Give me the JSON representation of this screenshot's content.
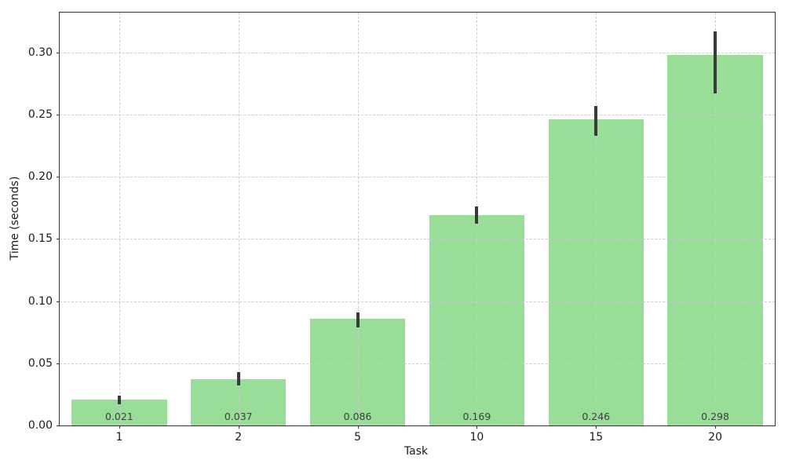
{
  "chart_data": {
    "type": "bar",
    "title": "",
    "xlabel": "Task",
    "ylabel": "Time (seconds)",
    "categories": [
      "1",
      "2",
      "5",
      "10",
      "15",
      "20"
    ],
    "values": [
      0.021,
      0.037,
      0.086,
      0.169,
      0.246,
      0.298
    ],
    "bar_labels": [
      "0.021",
      "0.037",
      "0.086",
      "0.169",
      "0.246",
      "0.298"
    ],
    "error_low": [
      0.017,
      0.032,
      0.079,
      0.162,
      0.233,
      0.267
    ],
    "error_high": [
      0.024,
      0.043,
      0.091,
      0.176,
      0.257,
      0.317
    ],
    "ylim": [
      0,
      0.332
    ],
    "yticks": [
      0.0,
      0.05,
      0.1,
      0.15,
      0.2,
      0.25,
      0.3
    ],
    "ytick_labels": [
      "0.00",
      "0.05",
      "0.10",
      "0.15",
      "0.20",
      "0.25",
      "0.30"
    ],
    "grid": true,
    "grid_style": "dashed",
    "legend": null,
    "bar_width_fraction": 0.8,
    "colors": {
      "bar": "#98de98",
      "error_bar": "#3a3a3a",
      "grid": "#c9c9c9",
      "bar_label": "#3d3d3d",
      "axis": "#333333",
      "tick_label": "#1a1a1a",
      "background": "#ffffff"
    }
  }
}
